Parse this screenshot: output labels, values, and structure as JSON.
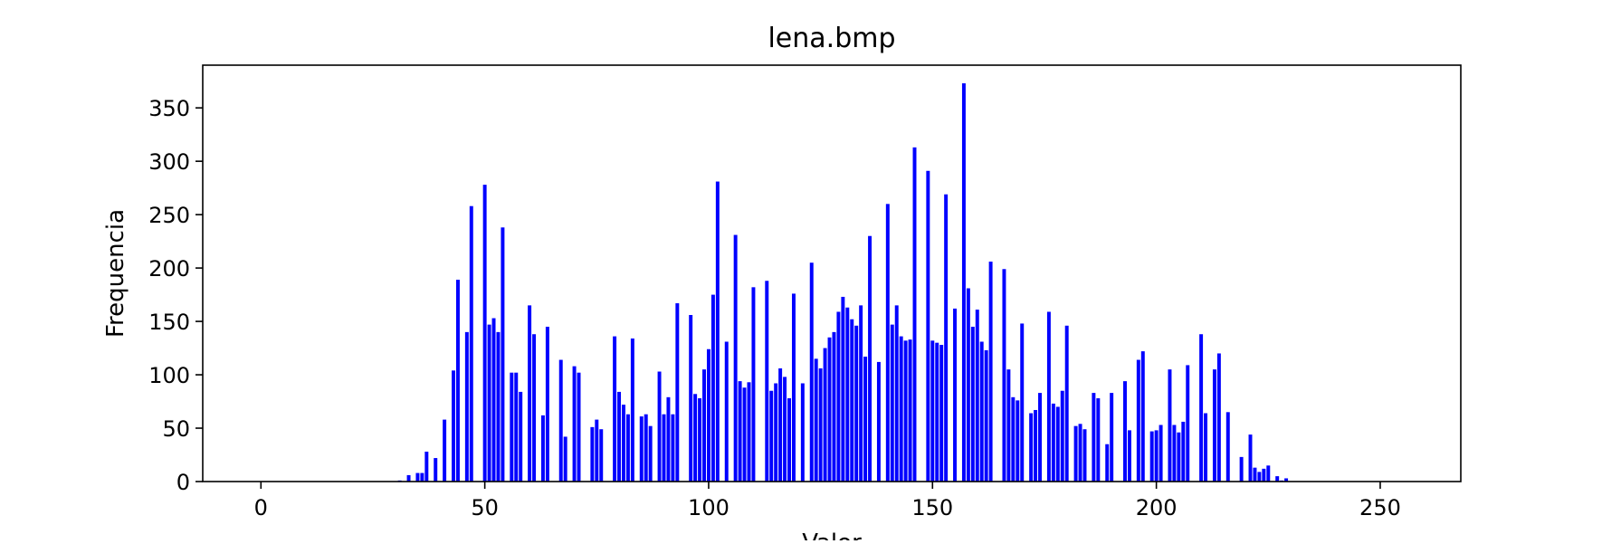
{
  "chart_data": {
    "type": "bar",
    "title": "lena.bmp",
    "xlabel": "Valor",
    "ylabel": "Frequencia",
    "xlim": [
      -13,
      268
    ],
    "ylim": [
      0,
      390
    ],
    "xticks": [
      0,
      50,
      100,
      150,
      200,
      250
    ],
    "yticks": [
      0,
      50,
      100,
      150,
      200,
      250,
      300,
      350
    ],
    "grid": false,
    "legend": null,
    "bar_color": "#0000ff",
    "series": [
      {
        "x": [
          31,
          32,
          33,
          34,
          35,
          36,
          37,
          38,
          39,
          40,
          41,
          42,
          43,
          44,
          45,
          46,
          47,
          48,
          49,
          50,
          51,
          52,
          53,
          54,
          55,
          56,
          57,
          58,
          59,
          60,
          61,
          62,
          63,
          64,
          65,
          66,
          67,
          68,
          69,
          70,
          71,
          72,
          73,
          74,
          75,
          76,
          77,
          78,
          79,
          80,
          81,
          82,
          83,
          84,
          85,
          86,
          87,
          88,
          89,
          90,
          91,
          92,
          93,
          94,
          95,
          96,
          97,
          98,
          99,
          100,
          101,
          102,
          103,
          104,
          105,
          106,
          107,
          108,
          109,
          110,
          111,
          112,
          113,
          114,
          115,
          116,
          117,
          118,
          119,
          120,
          121,
          122,
          123,
          124,
          125,
          126,
          127,
          128,
          129,
          130,
          131,
          132,
          133,
          134,
          135,
          136,
          137,
          138,
          139,
          140,
          141,
          142,
          143,
          144,
          145,
          146,
          147,
          148,
          149,
          150,
          151,
          152,
          153,
          154,
          155,
          156,
          157,
          158,
          159,
          160,
          161,
          162,
          163,
          164,
          165,
          166,
          167,
          168,
          169,
          170,
          171,
          172,
          173,
          174,
          175,
          176,
          177,
          178,
          179,
          180,
          181,
          182,
          183,
          184,
          185,
          186,
          187,
          188,
          189,
          190,
          191,
          192,
          193,
          194,
          195,
          196,
          197,
          198,
          199,
          200,
          201,
          202,
          203,
          204,
          205,
          206,
          207,
          208,
          209,
          210,
          211,
          212,
          213,
          214,
          215,
          216,
          217,
          218,
          219,
          220,
          221,
          222,
          223,
          224,
          225,
          226,
          227,
          228,
          229,
          230
        ],
        "values": [
          1,
          0,
          6,
          0,
          8,
          8,
          28,
          0,
          22,
          0,
          58,
          0,
          104,
          189,
          0,
          140,
          258,
          0,
          0,
          278,
          147,
          153,
          140,
          238,
          0,
          102,
          102,
          84,
          0,
          165,
          138,
          0,
          62,
          145,
          0,
          0,
          114,
          42,
          0,
          108,
          102,
          0,
          0,
          51,
          58,
          49,
          0,
          0,
          136,
          84,
          72,
          63,
          134,
          0,
          61,
          63,
          52,
          0,
          103,
          63,
          79,
          63,
          167,
          0,
          0,
          156,
          82,
          78,
          105,
          124,
          175,
          281,
          0,
          131,
          0,
          231,
          94,
          88,
          93,
          182,
          0,
          0,
          188,
          85,
          92,
          106,
          98,
          78,
          176,
          0,
          92,
          0,
          205,
          115,
          106,
          125,
          135,
          140,
          159,
          173,
          163,
          152,
          146,
          165,
          117,
          230,
          0,
          112,
          0,
          260,
          147,
          165,
          136,
          132,
          133,
          313,
          0,
          0,
          291,
          132,
          130,
          128,
          269,
          0,
          162,
          0,
          373,
          181,
          145,
          161,
          131,
          123,
          206,
          0,
          0,
          199,
          105,
          79,
          76,
          148,
          0,
          64,
          67,
          83,
          0,
          159,
          73,
          70,
          85,
          146,
          0,
          52,
          54,
          49,
          0,
          83,
          78,
          0,
          35,
          83,
          0,
          0,
          94,
          48,
          0,
          114,
          122,
          0,
          47,
          48,
          53,
          0,
          105,
          53,
          46,
          56,
          109,
          0,
          0,
          138,
          64,
          0,
          105,
          120,
          0,
          65,
          0,
          0,
          23,
          0,
          44,
          13,
          9,
          12,
          15,
          0,
          5,
          1,
          3,
          0
        ]
      }
    ]
  }
}
